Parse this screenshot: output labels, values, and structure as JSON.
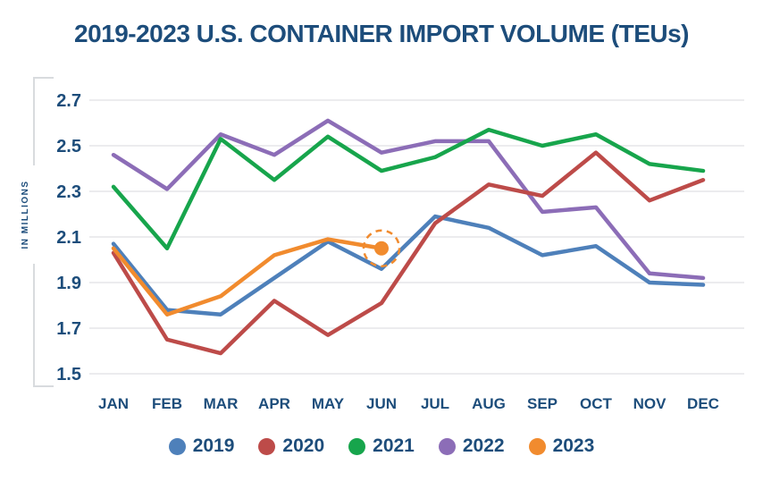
{
  "title": "2019-2023 U.S. CONTAINER IMPORT VOLUME (TEUs)",
  "colors": {
    "text_navy": "#1d4d7b",
    "gridline": "#ececee",
    "axis_bracket": "#d8dbde",
    "background": "#ffffff"
  },
  "chart_data": {
    "type": "line",
    "title": "2019-2023 U.S. CONTAINER IMPORT VOLUME (TEUs)",
    "categories": [
      "JAN",
      "FEB",
      "MAR",
      "APR",
      "MAY",
      "JUN",
      "JUL",
      "AUG",
      "SEP",
      "OCT",
      "NOV",
      "DEC"
    ],
    "xlabel": "",
    "ylabel": "IN MILLIONS",
    "ylim": [
      1.5,
      2.7
    ],
    "yticks": [
      2.7,
      2.5,
      2.3,
      2.1,
      1.9,
      1.7,
      1.5
    ],
    "grid": true,
    "legend_position": "bottom",
    "series": [
      {
        "name": "2019",
        "color": "#4e80ba",
        "values": [
          2.07,
          1.78,
          1.76,
          1.92,
          2.08,
          1.96,
          2.19,
          2.14,
          2.02,
          2.06,
          1.9,
          1.89
        ]
      },
      {
        "name": "2020",
        "color": "#bd4b49",
        "values": [
          2.03,
          1.65,
          1.59,
          1.82,
          1.67,
          1.81,
          2.16,
          2.33,
          2.28,
          2.47,
          2.26,
          2.35
        ]
      },
      {
        "name": "2021",
        "color": "#17a54c",
        "values": [
          2.32,
          2.05,
          2.53,
          2.35,
          2.54,
          2.39,
          2.45,
          2.57,
          2.5,
          2.55,
          2.42,
          2.39
        ]
      },
      {
        "name": "2022",
        "color": "#8c6db7",
        "values": [
          2.46,
          2.31,
          2.55,
          2.46,
          2.61,
          2.47,
          2.52,
          2.52,
          2.21,
          2.23,
          1.94,
          1.92
        ]
      },
      {
        "name": "2023",
        "color": "#f18b2e",
        "values": [
          2.05,
          1.76,
          1.84,
          2.02,
          2.09,
          2.05,
          null,
          null,
          null,
          null,
          null,
          null
        ]
      }
    ],
    "highlight": {
      "series": "2023",
      "category": "JUN",
      "value": 2.05,
      "marker": "filled-dot-with-dashed-circle"
    }
  }
}
